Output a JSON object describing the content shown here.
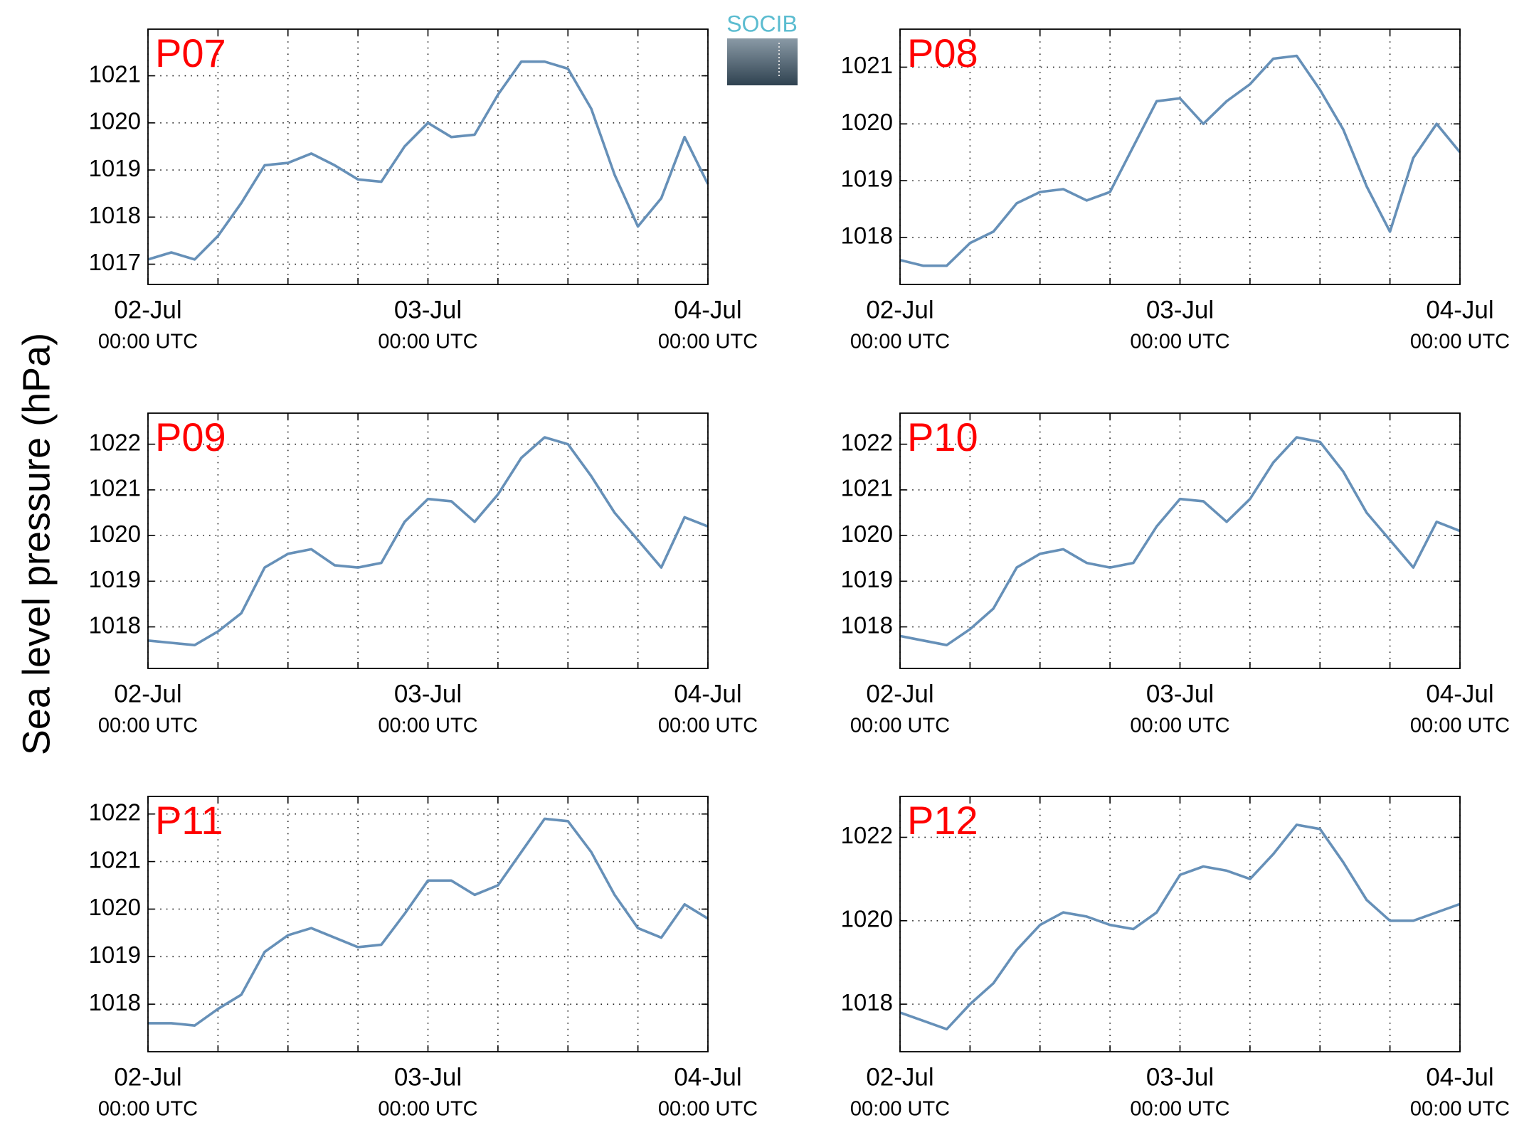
{
  "ylabel": "Sea level pressure (hPa)",
  "logo": "SOCIB",
  "chart_data": [
    {
      "type": "line",
      "title": "P07",
      "color": "#6690b8",
      "grid": true,
      "x": [
        "02-Jul 00:00",
        "02-Jul 02:00",
        "02-Jul 04:00",
        "02-Jul 06:00",
        "02-Jul 08:00",
        "02-Jul 10:00",
        "02-Jul 12:00",
        "02-Jul 14:00",
        "02-Jul 16:00",
        "02-Jul 18:00",
        "02-Jul 20:00",
        "02-Jul 22:00",
        "03-Jul 00:00",
        "03-Jul 02:00",
        "03-Jul 04:00",
        "03-Jul 06:00",
        "03-Jul 08:00",
        "03-Jul 10:00",
        "03-Jul 12:00",
        "03-Jul 14:00",
        "03-Jul 16:00",
        "03-Jul 18:00",
        "03-Jul 20:00",
        "03-Jul 22:00",
        "04-Jul 00:00"
      ],
      "values": [
        1017.1,
        1017.25,
        1017.1,
        1017.6,
        1018.3,
        1019.1,
        1019.15,
        1019.35,
        1019.1,
        1018.8,
        1018.75,
        1019.5,
        1020.0,
        1019.7,
        1019.75,
        1020.6,
        1021.3,
        1021.3,
        1021.15,
        1020.3,
        1018.9,
        1017.8,
        1018.4,
        1019.7,
        1018.7
      ],
      "xlim": [
        "02-Jul 00:00",
        "04-Jul 00:00"
      ],
      "xticks": [
        {
          "value": "02-Jul 00:00",
          "label": "02-Jul",
          "sublabel": "00:00 UTC"
        },
        {
          "value": "03-Jul 00:00",
          "label": "03-Jul",
          "sublabel": "00:00 UTC"
        },
        {
          "value": "04-Jul 00:00",
          "label": "04-Jul",
          "sublabel": "00:00 UTC"
        }
      ],
      "xminorticks": [
        "02-Jul 06:00",
        "02-Jul 12:00",
        "02-Jul 18:00",
        "03-Jul 06:00",
        "03-Jul 12:00",
        "03-Jul 18:00"
      ],
      "ylim": [
        1016.57,
        1021.99
      ],
      "yticks": [
        1017,
        1018,
        1019,
        1020,
        1021
      ]
    },
    {
      "type": "line",
      "title": "P08",
      "color": "#6690b8",
      "grid": true,
      "x": [
        "02-Jul 00:00",
        "02-Jul 02:00",
        "02-Jul 04:00",
        "02-Jul 06:00",
        "02-Jul 08:00",
        "02-Jul 10:00",
        "02-Jul 12:00",
        "02-Jul 14:00",
        "02-Jul 16:00",
        "02-Jul 18:00",
        "02-Jul 20:00",
        "02-Jul 22:00",
        "03-Jul 00:00",
        "03-Jul 02:00",
        "03-Jul 04:00",
        "03-Jul 06:00",
        "03-Jul 08:00",
        "03-Jul 10:00",
        "03-Jul 12:00",
        "03-Jul 14:00",
        "03-Jul 16:00",
        "03-Jul 18:00",
        "03-Jul 20:00",
        "03-Jul 22:00",
        "04-Jul 00:00"
      ],
      "values": [
        1017.6,
        1017.5,
        1017.5,
        1017.9,
        1018.1,
        1018.6,
        1018.8,
        1018.85,
        1018.65,
        1018.8,
        1019.6,
        1020.4,
        1020.45,
        1020.0,
        1020.4,
        1020.7,
        1021.15,
        1021.2,
        1020.6,
        1019.9,
        1018.9,
        1018.1,
        1019.4,
        1020.0,
        1019.5
      ],
      "xlim": [
        "02-Jul 00:00",
        "04-Jul 00:00"
      ],
      "xticks": [
        {
          "value": "02-Jul 00:00",
          "label": "02-Jul",
          "sublabel": "00:00 UTC"
        },
        {
          "value": "03-Jul 00:00",
          "label": "03-Jul",
          "sublabel": "00:00 UTC"
        },
        {
          "value": "04-Jul 00:00",
          "label": "04-Jul",
          "sublabel": "00:00 UTC"
        }
      ],
      "xminorticks": [
        "02-Jul 06:00",
        "02-Jul 12:00",
        "02-Jul 18:00",
        "03-Jul 06:00",
        "03-Jul 12:00",
        "03-Jul 18:00"
      ],
      "ylim": [
        1017.17,
        1021.67
      ],
      "yticks": [
        1018,
        1019,
        1020,
        1021
      ]
    },
    {
      "type": "line",
      "title": "P09",
      "color": "#6690b8",
      "grid": true,
      "x": [
        "02-Jul 00:00",
        "02-Jul 02:00",
        "02-Jul 04:00",
        "02-Jul 06:00",
        "02-Jul 08:00",
        "02-Jul 10:00",
        "02-Jul 12:00",
        "02-Jul 14:00",
        "02-Jul 16:00",
        "02-Jul 18:00",
        "02-Jul 20:00",
        "02-Jul 22:00",
        "03-Jul 00:00",
        "03-Jul 02:00",
        "03-Jul 04:00",
        "03-Jul 06:00",
        "03-Jul 08:00",
        "03-Jul 10:00",
        "03-Jul 12:00",
        "03-Jul 14:00",
        "03-Jul 16:00",
        "03-Jul 18:00",
        "03-Jul 20:00",
        "03-Jul 22:00",
        "04-Jul 00:00"
      ],
      "values": [
        1017.7,
        1017.65,
        1017.6,
        1017.9,
        1018.3,
        1019.3,
        1019.6,
        1019.7,
        1019.35,
        1019.3,
        1019.4,
        1020.3,
        1020.8,
        1020.75,
        1020.3,
        1020.9,
        1021.7,
        1022.15,
        1022.0,
        1021.3,
        1020.5,
        1019.9,
        1019.3,
        1020.4,
        1020.2
      ],
      "xlim": [
        "02-Jul 00:00",
        "04-Jul 00:00"
      ],
      "xticks": [
        {
          "value": "02-Jul 00:00",
          "label": "02-Jul",
          "sublabel": "00:00 UTC"
        },
        {
          "value": "03-Jul 00:00",
          "label": "03-Jul",
          "sublabel": "00:00 UTC"
        },
        {
          "value": "04-Jul 00:00",
          "label": "04-Jul",
          "sublabel": "00:00 UTC"
        }
      ],
      "xminorticks": [
        "02-Jul 06:00",
        "02-Jul 12:00",
        "02-Jul 18:00",
        "03-Jul 06:00",
        "03-Jul 12:00",
        "03-Jul 18:00"
      ],
      "ylim": [
        1017.09,
        1022.68
      ],
      "yticks": [
        1018,
        1019,
        1020,
        1021,
        1022
      ]
    },
    {
      "type": "line",
      "title": "P10",
      "color": "#6690b8",
      "grid": true,
      "x": [
        "02-Jul 00:00",
        "02-Jul 02:00",
        "02-Jul 04:00",
        "02-Jul 06:00",
        "02-Jul 08:00",
        "02-Jul 10:00",
        "02-Jul 12:00",
        "02-Jul 14:00",
        "02-Jul 16:00",
        "02-Jul 18:00",
        "02-Jul 20:00",
        "02-Jul 22:00",
        "03-Jul 00:00",
        "03-Jul 02:00",
        "03-Jul 04:00",
        "03-Jul 06:00",
        "03-Jul 08:00",
        "03-Jul 10:00",
        "03-Jul 12:00",
        "03-Jul 14:00",
        "03-Jul 16:00",
        "03-Jul 18:00",
        "03-Jul 20:00",
        "03-Jul 22:00",
        "04-Jul 00:00"
      ],
      "values": [
        1017.8,
        1017.7,
        1017.6,
        1017.95,
        1018.4,
        1019.3,
        1019.6,
        1019.7,
        1019.4,
        1019.3,
        1019.4,
        1020.2,
        1020.8,
        1020.75,
        1020.3,
        1020.8,
        1021.6,
        1022.15,
        1022.05,
        1021.4,
        1020.5,
        1019.9,
        1019.3,
        1020.3,
        1020.1
      ],
      "xlim": [
        "02-Jul 00:00",
        "04-Jul 00:00"
      ],
      "xticks": [
        {
          "value": "02-Jul 00:00",
          "label": "02-Jul",
          "sublabel": "00:00 UTC"
        },
        {
          "value": "03-Jul 00:00",
          "label": "03-Jul",
          "sublabel": "00:00 UTC"
        },
        {
          "value": "04-Jul 00:00",
          "label": "04-Jul",
          "sublabel": "00:00 UTC"
        }
      ],
      "xminorticks": [
        "02-Jul 06:00",
        "02-Jul 12:00",
        "02-Jul 18:00",
        "03-Jul 06:00",
        "03-Jul 12:00",
        "03-Jul 18:00"
      ],
      "ylim": [
        1017.09,
        1022.68
      ],
      "yticks": [
        1018,
        1019,
        1020,
        1021,
        1022
      ]
    },
    {
      "type": "line",
      "title": "P11",
      "color": "#6690b8",
      "grid": true,
      "x": [
        "02-Jul 00:00",
        "02-Jul 02:00",
        "02-Jul 04:00",
        "02-Jul 06:00",
        "02-Jul 08:00",
        "02-Jul 10:00",
        "02-Jul 12:00",
        "02-Jul 14:00",
        "02-Jul 16:00",
        "02-Jul 18:00",
        "02-Jul 20:00",
        "02-Jul 22:00",
        "03-Jul 00:00",
        "03-Jul 02:00",
        "03-Jul 04:00",
        "03-Jul 06:00",
        "03-Jul 08:00",
        "03-Jul 10:00",
        "03-Jul 12:00",
        "03-Jul 14:00",
        "03-Jul 16:00",
        "03-Jul 18:00",
        "03-Jul 20:00",
        "03-Jul 22:00",
        "04-Jul 00:00"
      ],
      "values": [
        1017.6,
        1017.6,
        1017.55,
        1017.9,
        1018.2,
        1019.1,
        1019.45,
        1019.6,
        1019.4,
        1019.2,
        1019.25,
        1019.9,
        1020.6,
        1020.6,
        1020.3,
        1020.5,
        1021.2,
        1021.9,
        1021.85,
        1021.2,
        1020.3,
        1019.6,
        1019.4,
        1020.1,
        1019.8
      ],
      "xlim": [
        "02-Jul 00:00",
        "04-Jul 00:00"
      ],
      "xticks": [
        {
          "value": "02-Jul 00:00",
          "label": "02-Jul",
          "sublabel": "00:00 UTC"
        },
        {
          "value": "03-Jul 00:00",
          "label": "03-Jul",
          "sublabel": "00:00 UTC"
        },
        {
          "value": "04-Jul 00:00",
          "label": "04-Jul",
          "sublabel": "00:00 UTC"
        }
      ],
      "xminorticks": [
        "02-Jul 06:00",
        "02-Jul 12:00",
        "02-Jul 18:00",
        "03-Jul 06:00",
        "03-Jul 12:00",
        "03-Jul 18:00"
      ],
      "ylim": [
        1017.0,
        1022.37
      ],
      "yticks": [
        1018,
        1019,
        1020,
        1021,
        1022
      ]
    },
    {
      "type": "line",
      "title": "P12",
      "color": "#6690b8",
      "grid": true,
      "x": [
        "02-Jul 00:00",
        "02-Jul 02:00",
        "02-Jul 04:00",
        "02-Jul 06:00",
        "02-Jul 08:00",
        "02-Jul 10:00",
        "02-Jul 12:00",
        "02-Jul 14:00",
        "02-Jul 16:00",
        "02-Jul 18:00",
        "02-Jul 20:00",
        "02-Jul 22:00",
        "03-Jul 00:00",
        "03-Jul 02:00",
        "03-Jul 04:00",
        "03-Jul 06:00",
        "03-Jul 08:00",
        "03-Jul 10:00",
        "03-Jul 12:00",
        "03-Jul 14:00",
        "03-Jul 16:00",
        "03-Jul 18:00",
        "03-Jul 20:00",
        "03-Jul 22:00",
        "04-Jul 00:00"
      ],
      "values": [
        1017.8,
        1017.6,
        1017.4,
        1018.0,
        1018.5,
        1019.3,
        1019.9,
        1020.2,
        1020.1,
        1019.9,
        1019.8,
        1020.2,
        1021.1,
        1021.3,
        1021.2,
        1021.0,
        1021.6,
        1022.3,
        1022.2,
        1021.4,
        1020.5,
        1020.0,
        1020.0,
        1020.2,
        1020.4
      ],
      "xlim": [
        "02-Jul 00:00",
        "04-Jul 00:00"
      ],
      "xticks": [
        {
          "value": "02-Jul 00:00",
          "label": "02-Jul",
          "sublabel": "00:00 UTC"
        },
        {
          "value": "03-Jul 00:00",
          "label": "03-Jul",
          "sublabel": "00:00 UTC"
        },
        {
          "value": "04-Jul 00:00",
          "label": "04-Jul",
          "sublabel": "00:00 UTC"
        }
      ],
      "xminorticks": [
        "02-Jul 06:00",
        "02-Jul 12:00",
        "02-Jul 18:00",
        "03-Jul 06:00",
        "03-Jul 12:00",
        "03-Jul 18:00"
      ],
      "ylim": [
        1016.86,
        1022.98
      ],
      "yticks": [
        1018,
        1020,
        1022
      ]
    }
  ]
}
